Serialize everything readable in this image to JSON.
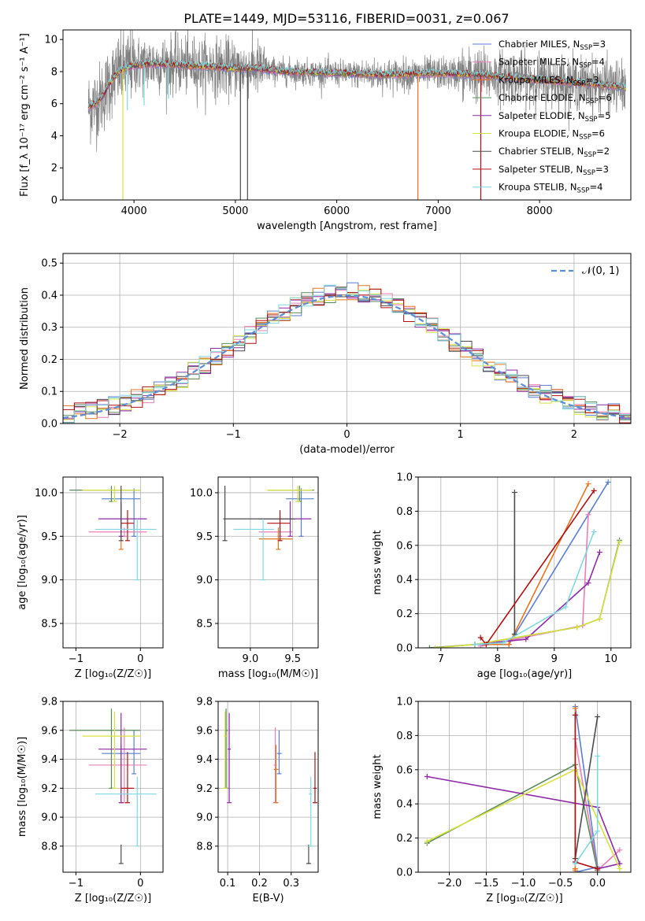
{
  "title": "PLATE=1449, MJD=53116, FIBERID=0031, z=0.067",
  "palette": {
    "chabrier_miles": "#5b7fd1",
    "salpeter_miles": "#e87fb8",
    "kroupa_miles": "#e8731f",
    "chabrier_elodie": "#5a8a5a",
    "salpeter_elodie": "#8e2aa8",
    "kroupa_elodie": "#d8e040",
    "chabrier_stelib": "#4d4d4d",
    "salpeter_stelib": "#b01010",
    "kroupa_stelib": "#7fd8e0",
    "data": "#808080",
    "normal": "#5b8fd6",
    "grid": "#b0b0b0"
  },
  "chart_data": [
    {
      "id": "spectrum",
      "type": "line",
      "title": "PLATE=1449, MJD=53116, FIBERID=0031, z=0.067",
      "xlabel": "wavelength [Angstrom, rest frame]",
      "ylabel": "Flux [f_λ 10⁻¹⁷ erg cm⁻² s⁻¹ A⁻¹]",
      "xlim": [
        3300,
        8900
      ],
      "ylim": [
        0,
        10.6
      ],
      "xticks": [
        4000,
        5000,
        6000,
        7000,
        8000
      ],
      "yticks": [
        0,
        2,
        4,
        6,
        8,
        10
      ],
      "grid": false,
      "legend_position": "top-right",
      "legend": [
        {
          "label": "Chabrier MILES, N",
          "sub": "SSP",
          "suffix": "=3",
          "color": "#5b7fd1"
        },
        {
          "label": "Salpeter MILES, N",
          "sub": "SSP",
          "suffix": "=4",
          "color": "#e87fb8"
        },
        {
          "label": "Kroupa MILES, N",
          "sub": "SSP",
          "suffix": "=3",
          "color": "#e8731f"
        },
        {
          "label": "Chabrier ELODIE, N",
          "sub": "SSP",
          "suffix": "=6",
          "color": "#5a8a5a"
        },
        {
          "label": "Salpeter ELODIE, N",
          "sub": "SSP",
          "suffix": "=5",
          "color": "#8e2aa8"
        },
        {
          "label": "Kroupa ELODIE, N",
          "sub": "SSP",
          "suffix": "=6",
          "color": "#d8e040"
        },
        {
          "label": "Chabrier STELIB, N",
          "sub": "SSP",
          "suffix": "=2",
          "color": "#4d4d4d"
        },
        {
          "label": "Salpeter STELIB, N",
          "sub": "SSP",
          "suffix": "=3",
          "color": "#b01010"
        },
        {
          "label": "Kroupa STELIB, N",
          "sub": "SSP",
          "suffix": "=4",
          "color": "#7fd8e0"
        }
      ],
      "continuum": [
        [
          3550,
          5.8
        ],
        [
          3620,
          6.0
        ],
        [
          3700,
          6.5
        ],
        [
          3750,
          7.2
        ],
        [
          3800,
          7.6
        ],
        [
          3850,
          8.0
        ],
        [
          3900,
          8.2
        ],
        [
          4000,
          8.4
        ],
        [
          4200,
          8.5
        ],
        [
          4500,
          8.4
        ],
        [
          4800,
          8.3
        ],
        [
          5000,
          8.2
        ],
        [
          5200,
          8.2
        ],
        [
          5500,
          8.0
        ],
        [
          6000,
          7.9
        ],
        [
          6500,
          7.8
        ],
        [
          7000,
          7.9
        ],
        [
          7400,
          7.8
        ],
        [
          7800,
          7.6
        ],
        [
          8200,
          7.4
        ],
        [
          8600,
          7.2
        ],
        [
          8850,
          7.0
        ]
      ],
      "absorption_lines": [
        {
          "x": 3890,
          "y": 0.0,
          "series": "kroupa_elodie"
        },
        {
          "x": 3935,
          "y": 5.6,
          "series": "kroupa_stelib"
        },
        {
          "x": 4100,
          "y": 5.9,
          "series": "kroupa_stelib"
        },
        {
          "x": 4340,
          "y": 6.3,
          "series": "kroupa_stelib"
        },
        {
          "x": 5050,
          "y": 0.0,
          "series": "chabrier_stelib"
        },
        {
          "x": 5120,
          "y": 0.0,
          "series": "chabrier_stelib"
        },
        {
          "x": 6800,
          "y": 0.0,
          "series": "kroupa_miles"
        },
        {
          "x": 7420,
          "y": 0.0,
          "series": "salpeter_stelib"
        }
      ]
    },
    {
      "id": "residuals",
      "type": "step",
      "xlabel": "(data-model)/error",
      "ylabel": "Normed distribution",
      "xlim": [
        -2.5,
        2.5
      ],
      "ylim": [
        0,
        0.53
      ],
      "xticks": [
        -2,
        -1,
        0,
        1,
        2
      ],
      "yticks": [
        0.0,
        0.1,
        0.2,
        0.3,
        0.4,
        0.5
      ],
      "grid": true,
      "legend_position": "top-right",
      "normal_label": "𝒩(0, 1)",
      "bin_width": 0.1
    },
    {
      "id": "z_age",
      "type": "errorbar",
      "xlabel": "Z [log₁₀(Z/Z☉)]",
      "ylabel": "age  [log₁₀(age/yr)]",
      "xlim": [
        -1.2,
        0.35
      ],
      "ylim": [
        8.22,
        10.18
      ],
      "xticks": [
        -1,
        0
      ],
      "yticks": [
        8.5,
        9.0,
        9.5,
        10.0
      ],
      "grid": true
    },
    {
      "id": "mass_age",
      "type": "errorbar",
      "xlabel": "mass [log₁₀(M/M☉)]",
      "ylabel": "",
      "xlim": [
        8.62,
        9.8
      ],
      "ylim": [
        8.22,
        10.18
      ],
      "xticks": [
        9.0,
        9.5
      ],
      "yticks": [
        8.5,
        9.0,
        9.5,
        10.0
      ],
      "grid": true
    },
    {
      "id": "age_weight",
      "type": "line",
      "xlabel": "age  [log₁₀(age/yr)]",
      "ylabel": "mass weight",
      "xlim": [
        6.6,
        10.35
      ],
      "ylim": [
        0,
        1.0
      ],
      "xticks": [
        7,
        8,
        9,
        10
      ],
      "yticks": [
        0.0,
        0.2,
        0.4,
        0.6,
        0.8,
        1.0
      ],
      "grid": true
    },
    {
      "id": "z_mass",
      "type": "errorbar",
      "xlabel": "Z [log₁₀(Z/Z☉)]",
      "ylabel": "mass [log₁₀(M/M☉)]",
      "xlim": [
        -1.2,
        0.35
      ],
      "ylim": [
        8.62,
        9.8
      ],
      "xticks": [
        -1,
        0
      ],
      "yticks": [
        8.8,
        9.0,
        9.2,
        9.4,
        9.6,
        9.8
      ],
      "grid": true
    },
    {
      "id": "ebv_mass",
      "type": "errorbar",
      "xlabel": "E(B-V)",
      "ylabel": "",
      "xlim": [
        0.07,
        0.385
      ],
      "ylim": [
        8.62,
        9.8
      ],
      "xticks": [
        0.1,
        0.2,
        0.3
      ],
      "yticks": [
        8.8,
        9.0,
        9.2,
        9.4,
        9.6,
        9.8
      ],
      "grid": true
    },
    {
      "id": "z_weight",
      "type": "line",
      "xlabel": "Z [log₁₀(Z/Z☉)]",
      "ylabel": "mass weight",
      "xlim": [
        -2.42,
        0.45
      ],
      "ylim": [
        0,
        1.0
      ],
      "xticks": [
        -2.0,
        -1.5,
        -1.0,
        -0.5,
        0.0
      ],
      "yticks": [
        0.0,
        0.2,
        0.4,
        0.6,
        0.8,
        1.0
      ],
      "grid": true
    }
  ],
  "models": [
    {
      "key": "chabrier_miles",
      "color": "#5b7fd1",
      "z": [
        -0.1,
        -0.6,
        0.0
      ],
      "age": [
        9.93,
        9.5,
        10.05
      ],
      "mass": [
        9.6,
        9.42,
        9.75
      ],
      "ebv": [
        0.262,
        0.255,
        0.27
      ],
      "mass_z_y": [
        9.44,
        9.3,
        9.6
      ],
      "mw_age": [
        [
          7.6,
          0.02
        ],
        [
          8.2,
          0.02
        ],
        [
          9.95,
          0.97
        ]
      ],
      "mw_z": [
        [
          -0.3,
          0.0
        ],
        [
          0.0,
          0.03
        ],
        [
          -0.3,
          0.97
        ]
      ]
    },
    {
      "key": "salpeter_miles",
      "color": "#e87fb8",
      "z": [
        -0.25,
        -0.8,
        0.1
      ],
      "age": [
        9.55,
        9.5,
        9.6
      ],
      "mass": [
        9.35,
        9.1,
        9.5
      ],
      "ebv": [
        0.25,
        0.245,
        0.255
      ],
      "mass_z_y": [
        9.36,
        9.1,
        9.62
      ],
      "mw_age": [
        [
          7.7,
          0.01
        ],
        [
          9.5,
          0.13
        ],
        [
          9.6,
          0.78
        ]
      ],
      "mw_z": [
        [
          -0.3,
          0.78
        ],
        [
          0.0,
          0.01
        ],
        [
          0.3,
          0.13
        ]
      ]
    },
    {
      "key": "kroupa_miles",
      "color": "#e8731f",
      "z": [
        -0.3,
        -0.3,
        -0.3
      ],
      "age": [
        9.47,
        9.35,
        9.6
      ],
      "mass": [
        9.33,
        9.1,
        9.5
      ],
      "ebv": [
        0.252,
        0.245,
        0.26
      ],
      "mass_z_y": [
        9.33,
        9.1,
        9.5
      ],
      "mw_age": [
        [
          7.8,
          0.02
        ],
        [
          8.2,
          0.02
        ],
        [
          9.6,
          0.96
        ]
      ],
      "mw_z": [
        [
          -0.3,
          0.96
        ],
        [
          -0.3,
          0.02
        ],
        [
          -0.3,
          0.01
        ]
      ]
    },
    {
      "key": "chabrier_elodie",
      "color": "#5a8a5a",
      "z": [
        -0.45,
        -1.1,
        0.0
      ],
      "age": [
        10.03,
        9.9,
        10.08
      ],
      "mass": [
        9.58,
        9.2,
        9.75
      ],
      "ebv": [
        0.095,
        0.09,
        0.1
      ],
      "mass_z_y": [
        9.6,
        9.2,
        9.75
      ],
      "mw_age": [
        [
          6.8,
          0.0
        ],
        [
          7.6,
          0.02
        ],
        [
          9.4,
          0.12
        ],
        [
          9.8,
          0.17
        ],
        [
          10.15,
          0.63
        ]
      ],
      "mw_z": [
        [
          -2.3,
          0.17
        ],
        [
          -0.3,
          0.63
        ],
        [
          0.0,
          0.01
        ]
      ]
    },
    {
      "key": "salpeter_elodie",
      "color": "#8e2aa8",
      "z": [
        -0.3,
        -0.65,
        0.1
      ],
      "age": [
        9.7,
        9.5,
        9.9
      ],
      "mass": [
        9.47,
        9.1,
        9.72
      ],
      "ebv": [
        0.105,
        0.1,
        0.11
      ],
      "mass_z_y": [
        9.47,
        9.1,
        9.72
      ],
      "mw_age": [
        [
          7.6,
          0.02
        ],
        [
          8.5,
          0.05
        ],
        [
          9.6,
          0.38
        ],
        [
          9.8,
          0.56
        ]
      ],
      "mw_z": [
        [
          -2.3,
          0.56
        ],
        [
          0.0,
          0.38
        ],
        [
          0.3,
          0.05
        ],
        [
          0.0,
          0.02
        ]
      ]
    },
    {
      "key": "kroupa_elodie",
      "color": "#d8e040",
      "z": [
        -0.4,
        -0.9,
        0.0
      ],
      "age": [
        10.03,
        9.9,
        10.08
      ],
      "mass": [
        9.56,
        9.2,
        9.73
      ],
      "ebv": [
        0.092,
        0.088,
        0.098
      ],
      "mass_z_y": [
        9.56,
        9.2,
        9.73
      ],
      "mw_age": [
        [
          6.9,
          0.0
        ],
        [
          7.6,
          0.02
        ],
        [
          9.4,
          0.12
        ],
        [
          9.8,
          0.17
        ],
        [
          10.15,
          0.62
        ]
      ],
      "mw_z": [
        [
          -2.3,
          0.18
        ],
        [
          -0.3,
          0.6
        ],
        [
          0.3,
          0.02
        ]
      ]
    },
    {
      "key": "chabrier_stelib",
      "color": "#4d4d4d",
      "z": [
        -0.3,
        -0.3,
        -0.3
      ],
      "age": [
        9.7,
        9.45,
        10.08
      ],
      "mass": [
        8.7,
        8.68,
        9.53
      ],
      "ebv": [
        0.355,
        0.35,
        0.36
      ],
      "mass_z_y": [
        8.68,
        8.68,
        8.81
      ],
      "mw_age": [
        [
          8.3,
          0.08
        ],
        [
          8.3,
          0.91
        ]
      ],
      "mw_z": [
        [
          -0.3,
          0.08
        ],
        [
          0.0,
          0.91
        ]
      ]
    },
    {
      "key": "salpeter_stelib",
      "color": "#b01010",
      "z": [
        -0.2,
        -0.3,
        -0.1
      ],
      "age": [
        9.65,
        9.45,
        9.8
      ],
      "mass": [
        9.35,
        9.2,
        9.47
      ],
      "ebv": [
        0.375,
        0.37,
        0.38
      ],
      "mass_z_y": [
        9.2,
        9.1,
        9.45
      ],
      "mw_age": [
        [
          7.7,
          0.06
        ],
        [
          7.8,
          0.02
        ],
        [
          9.7,
          0.92
        ]
      ],
      "mw_z": [
        [
          -0.3,
          0.92
        ],
        [
          -0.3,
          0.06
        ],
        [
          0.0,
          0.02
        ]
      ]
    },
    {
      "key": "kroupa_stelib",
      "color": "#7fd8e0",
      "z": [
        -0.05,
        -0.7,
        0.25
      ],
      "age": [
        9.58,
        9.0,
        9.7
      ],
      "mass": [
        9.15,
        8.8,
        9.28
      ],
      "ebv": [
        0.362,
        0.355,
        0.365
      ],
      "mass_z_y": [
        9.16,
        8.8,
        9.28
      ],
      "mw_age": [
        [
          7.6,
          0.02
        ],
        [
          8.1,
          0.03
        ],
        [
          9.2,
          0.24
        ],
        [
          9.7,
          0.68
        ]
      ],
      "mw_z": [
        [
          -0.3,
          0.05
        ],
        [
          0.0,
          0.24
        ],
        [
          0.0,
          0.68
        ]
      ]
    }
  ]
}
